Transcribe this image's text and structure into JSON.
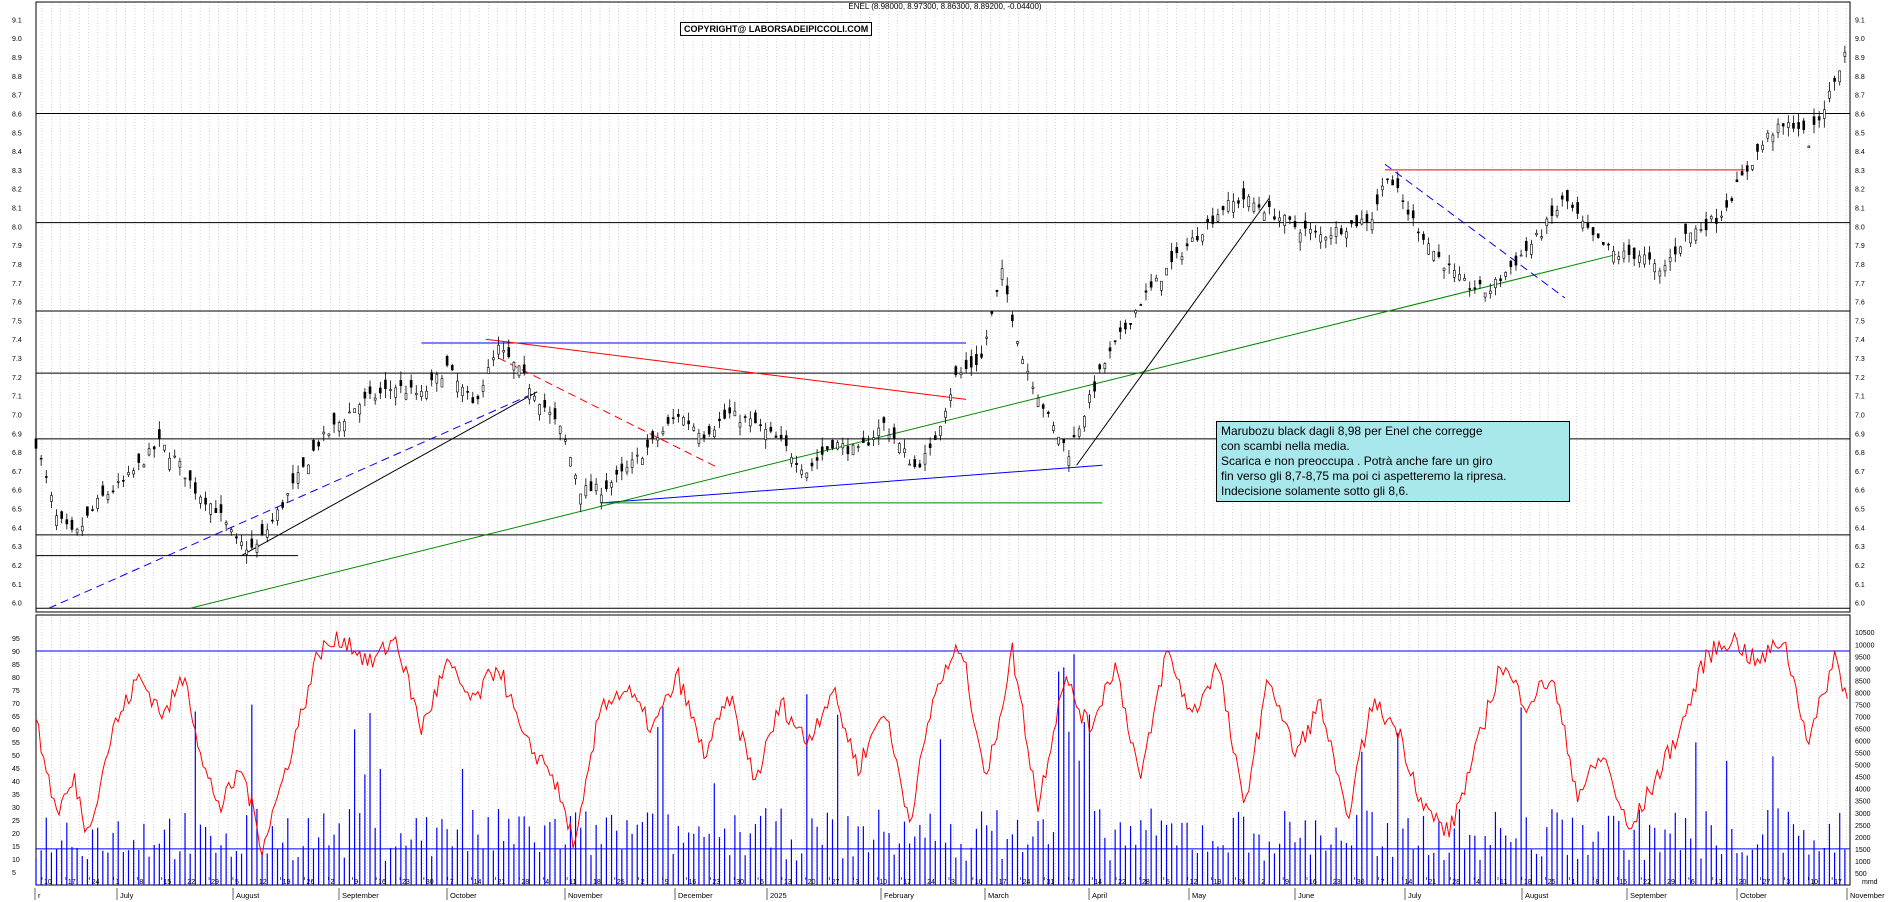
{
  "header": {
    "title": "ENEL (8.98000, 8.97300, 8.86300, 8.89200, -0.04400)",
    "copyright": "COPYRIGHT@ LABORSADEIPICCOLI.COM"
  },
  "annotation": {
    "lines": [
      "Marubozu black dagli 8,98 per Enel che corregge",
      "con scambi nella media.",
      "Scarica e non preoccupa . Potrà anche fare un giro",
      "fin verso gli 8,7-8,75 ma poi ci aspetteremo la ripresa.",
      "Indecisione solamente sotto gli 8,6."
    ]
  },
  "colors": {
    "candle_up": "#ffffff",
    "candle_down": "#000000",
    "oscillator": "#ff0000",
    "volume": "#0000ff",
    "note_bg": "#a8e8ec"
  },
  "chart_data": [
    {
      "type": "candlestick",
      "instrument": "ENEL",
      "y_ticks": [
        "6.0",
        "6.1",
        "6.2",
        "6.3",
        "6.4",
        "6.5",
        "6.6",
        "6.7",
        "6.8",
        "6.9",
        "7.0",
        "7.1",
        "7.2",
        "7.3",
        "7.4",
        "7.5",
        "7.6",
        "7.7",
        "7.8",
        "7.9",
        "8.0",
        "8.1",
        "8.2",
        "8.3",
        "8.4",
        "8.5",
        "8.6",
        "8.7",
        "8.8",
        "8.9",
        "9.0",
        "9.1"
      ],
      "ylim": [
        6.0,
        9.1
      ],
      "horizontal_levels": [
        8.6,
        8.02,
        7.55,
        7.22,
        6.87,
        6.36,
        5.97
      ],
      "close_path": [
        [
          0,
          6.85
        ],
        [
          8,
          6.45
        ],
        [
          15,
          6.35
        ],
        [
          25,
          6.55
        ],
        [
          35,
          6.65
        ],
        [
          48,
          6.85
        ],
        [
          55,
          6.75
        ],
        [
          62,
          6.6
        ],
        [
          70,
          6.5
        ],
        [
          78,
          6.32
        ],
        [
          85,
          6.28
        ],
        [
          95,
          6.5
        ],
        [
          110,
          6.85
        ],
        [
          125,
          7.05
        ],
        [
          140,
          7.15
        ],
        [
          150,
          7.1
        ],
        [
          160,
          7.25
        ],
        [
          170,
          7.05
        ],
        [
          180,
          7.35
        ],
        [
          187,
          7.25
        ],
        [
          195,
          7.1
        ],
        [
          205,
          6.9
        ],
        [
          212,
          6.6
        ],
        [
          220,
          6.6
        ],
        [
          228,
          6.68
        ],
        [
          240,
          6.85
        ],
        [
          250,
          7.0
        ],
        [
          260,
          6.9
        ],
        [
          270,
          7.0
        ],
        [
          280,
          6.95
        ],
        [
          290,
          6.85
        ],
        [
          300,
          6.7
        ],
        [
          310,
          6.85
        ],
        [
          320,
          6.8
        ],
        [
          330,
          6.95
        ],
        [
          342,
          6.72
        ],
        [
          348,
          6.8
        ],
        [
          358,
          7.2
        ],
        [
          368,
          7.3
        ],
        [
          376,
          7.75
        ],
        [
          384,
          7.3
        ],
        [
          395,
          6.95
        ],
        [
          402,
          6.8
        ],
        [
          415,
          7.25
        ],
        [
          430,
          7.6
        ],
        [
          445,
          7.85
        ],
        [
          455,
          8.0
        ],
        [
          462,
          8.1
        ],
        [
          470,
          8.15
        ],
        [
          480,
          8.08
        ],
        [
          490,
          8.0
        ],
        [
          500,
          7.95
        ],
        [
          510,
          8.0
        ],
        [
          520,
          8.05
        ],
        [
          526,
          8.28
        ],
        [
          535,
          8.05
        ],
        [
          545,
          7.85
        ],
        [
          555,
          7.7
        ],
        [
          565,
          7.65
        ],
        [
          575,
          7.8
        ],
        [
          585,
          7.95
        ],
        [
          595,
          8.15
        ],
        [
          605,
          7.95
        ],
        [
          615,
          7.85
        ],
        [
          625,
          7.85
        ],
        [
          632,
          7.75
        ],
        [
          642,
          7.95
        ],
        [
          655,
          8.05
        ],
        [
          665,
          8.28
        ],
        [
          675,
          8.5
        ],
        [
          685,
          8.55
        ],
        [
          690,
          8.45
        ],
        [
          698,
          8.7
        ],
        [
          705,
          8.95
        ]
      ],
      "trendlines": [
        {
          "color": "#0000ff",
          "style": "solid",
          "from": [
            150,
            7.38
          ],
          "to": [
            362,
            7.38
          ]
        },
        {
          "color": "#ff0000",
          "style": "solid",
          "from": [
            175,
            7.4
          ],
          "to": [
            362,
            7.08
          ]
        },
        {
          "color": "#ff0000",
          "style": "dashed",
          "from": [
            180,
            7.3
          ],
          "to": [
            265,
            6.72
          ]
        },
        {
          "color": "#0000ff",
          "style": "dashed",
          "from": [
            5,
            5.97
          ],
          "to": [
            195,
            7.12
          ]
        },
        {
          "color": "#000000",
          "style": "solid",
          "from": [
            80,
            6.25
          ],
          "to": [
            195,
            7.12
          ]
        },
        {
          "color": "#0000ff",
          "style": "solid",
          "from": [
            220,
            6.53
          ],
          "to": [
            415,
            6.73
          ]
        },
        {
          "color": "#008800",
          "style": "solid",
          "from": [
            220,
            6.53
          ],
          "to": [
            415,
            6.53
          ]
        },
        {
          "color": "#008800",
          "style": "solid",
          "from": [
            60,
            5.97
          ],
          "to": [
            615,
            7.85
          ]
        },
        {
          "color": "#000000",
          "style": "solid",
          "from": [
            405,
            6.73
          ],
          "to": [
            480,
            8.15
          ]
        },
        {
          "color": "#0000ff",
          "style": "dashed",
          "from": [
            525,
            8.33
          ],
          "to": [
            595,
            7.62
          ]
        },
        {
          "color": "#ff0000",
          "style": "solid",
          "from": [
            525,
            8.3
          ],
          "to": [
            665,
            8.3
          ]
        },
        {
          "color": "#000000",
          "style": "solid",
          "from": [
            0,
            6.25
          ],
          "to": [
            102,
            6.25
          ]
        }
      ]
    },
    {
      "type": "line",
      "name": "oscillator",
      "y_ticks": [
        "5",
        "10",
        "15",
        "20",
        "25",
        "30",
        "35",
        "40",
        "45",
        "50",
        "55",
        "60",
        "65",
        "70",
        "75",
        "80",
        "85",
        "90",
        "95"
      ],
      "ylim": [
        0,
        100
      ],
      "level": 90,
      "values": [
        [
          0,
          62
        ],
        [
          8,
          28
        ],
        [
          15,
          40
        ],
        [
          20,
          20
        ],
        [
          30,
          60
        ],
        [
          40,
          80
        ],
        [
          50,
          65
        ],
        [
          58,
          82
        ],
        [
          65,
          45
        ],
        [
          72,
          30
        ],
        [
          80,
          45
        ],
        [
          88,
          15
        ],
        [
          96,
          40
        ],
        [
          110,
          90
        ],
        [
          120,
          95
        ],
        [
          130,
          85
        ],
        [
          140,
          95
        ],
        [
          150,
          60
        ],
        [
          160,
          85
        ],
        [
          170,
          70
        ],
        [
          180,
          85
        ],
        [
          190,
          55
        ],
        [
          200,
          45
        ],
        [
          210,
          15
        ],
        [
          220,
          70
        ],
        [
          230,
          75
        ],
        [
          240,
          60
        ],
        [
          250,
          80
        ],
        [
          260,
          50
        ],
        [
          270,
          72
        ],
        [
          280,
          40
        ],
        [
          290,
          70
        ],
        [
          300,
          55
        ],
        [
          310,
          75
        ],
        [
          320,
          45
        ],
        [
          330,
          68
        ],
        [
          340,
          25
        ],
        [
          350,
          75
        ],
        [
          360,
          92
        ],
        [
          370,
          40
        ],
        [
          380,
          90
        ],
        [
          390,
          30
        ],
        [
          400,
          80
        ],
        [
          410,
          60
        ],
        [
          420,
          85
        ],
        [
          430,
          40
        ],
        [
          440,
          90
        ],
        [
          450,
          65
        ],
        [
          460,
          85
        ],
        [
          470,
          30
        ],
        [
          480,
          80
        ],
        [
          490,
          50
        ],
        [
          500,
          70
        ],
        [
          510,
          25
        ],
        [
          520,
          70
        ],
        [
          530,
          60
        ],
        [
          540,
          30
        ],
        [
          550,
          20
        ],
        [
          560,
          50
        ],
        [
          570,
          85
        ],
        [
          580,
          70
        ],
        [
          590,
          80
        ],
        [
          600,
          35
        ],
        [
          610,
          50
        ],
        [
          620,
          20
        ],
        [
          630,
          40
        ],
        [
          640,
          60
        ],
        [
          650,
          88
        ],
        [
          660,
          95
        ],
        [
          670,
          85
        ],
        [
          680,
          95
        ],
        [
          690,
          55
        ],
        [
          700,
          88
        ],
        [
          705,
          72
        ]
      ]
    },
    {
      "type": "bar",
      "name": "volume",
      "y_ticks": [
        "500",
        "1000",
        "1500",
        "2000",
        "2500",
        "3000",
        "3500",
        "4000",
        "4500",
        "5000",
        "5500",
        "6000",
        "6500",
        "7000",
        "7500",
        "8000",
        "8500",
        "9000",
        "9500",
        "10000",
        "10500"
      ],
      "ylim": [
        0,
        10800
      ],
      "level": 1500,
      "values_count": 706
    }
  ],
  "x_axis": {
    "day_ticks": [
      "10",
      "17",
      "24",
      "1",
      "8",
      "15",
      "22",
      "29",
      "5",
      "12",
      "19",
      "26",
      "2",
      "9",
      "16",
      "23",
      "30",
      "7",
      "14",
      "21",
      "28",
      "4",
      "11",
      "18",
      "25",
      "2",
      "9",
      "16",
      "23",
      "30",
      "6",
      "13",
      "20",
      "27",
      "3",
      "10",
      "17",
      "24",
      "3",
      "10",
      "17",
      "24",
      "31",
      "7",
      "14",
      "22",
      "28",
      "5",
      "12",
      "19",
      "26",
      "2",
      "9",
      "16",
      "23",
      "30",
      "7",
      "14",
      "21",
      "28",
      "4",
      "11",
      "18",
      "25",
      "1",
      "8",
      "15",
      "22",
      "29",
      "6",
      "13",
      "20",
      "27",
      "3",
      "10",
      "17"
    ],
    "month_labels": [
      "r",
      "July",
      "August",
      "September",
      "October",
      "November",
      "December",
      "2025",
      "February",
      "March",
      "April",
      "May",
      "June",
      "July",
      "August",
      "September",
      "October",
      "November"
    ],
    "corner_label": "mmd"
  }
}
